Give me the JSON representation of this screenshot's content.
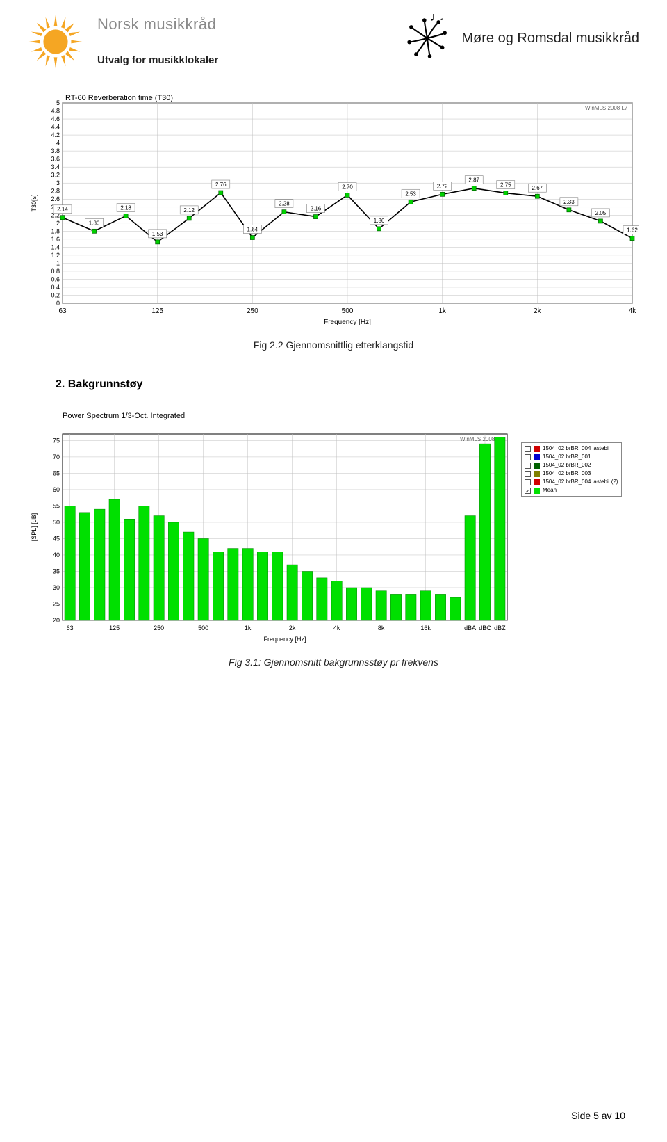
{
  "header": {
    "org_main": "Norsk musikkråd",
    "org_sub": "Utvalg for musikklokaler",
    "org_right": "Møre og Romsdal musikkråd"
  },
  "chart1": {
    "type": "line",
    "title": "RT-60 Reverberation time (T30)",
    "watermark": "WinMLS 2008 L7",
    "ylabel": "T30[s]",
    "ylim": [
      0,
      5
    ],
    "ytick_step": 0.2,
    "xlabel": "Frequency [Hz]",
    "x_tick_labels": [
      "63",
      "125",
      "250",
      "500",
      "1k",
      "2k",
      "4k"
    ],
    "x_positions": [
      0,
      3,
      6,
      9,
      12,
      15,
      18
    ],
    "n_points": 19,
    "values": [
      2.14,
      1.8,
      2.18,
      1.53,
      2.12,
      2.76,
      1.64,
      2.28,
      2.16,
      2.7,
      1.86,
      2.53,
      2.72,
      2.87,
      2.75,
      2.67,
      2.33,
      2.05,
      1.62
    ],
    "line_color": "#000000",
    "marker_color": "#00d000",
    "label_box_border": "#808080",
    "label_box_fill": "#ffffff",
    "label_fontsize": 8,
    "grid_color": "#c0c0c0",
    "background_color": "#ffffff",
    "caption": "Fig 2.2 Gjennomsnittlig etterklangstid"
  },
  "section2_heading": "2. Bakgrunnstøy",
  "chart2": {
    "type": "bar",
    "title": "Power Spectrum 1/3-Oct. Integrated",
    "watermark": "WinMLS 2008 L7",
    "ylabel": "[SPL] [dB]",
    "ylim": [
      20,
      77
    ],
    "yticks": [
      20,
      25,
      30,
      35,
      40,
      45,
      50,
      55,
      60,
      65,
      70,
      75
    ],
    "xlabel": "Frequency [Hz]",
    "x_tick_labels": [
      "63",
      "125",
      "250",
      "500",
      "1k",
      "2k",
      "4k",
      "8k",
      "16k",
      "dBA",
      "dBC",
      "dBZ"
    ],
    "x_tick_positions": [
      0,
      3,
      6,
      9,
      12,
      15,
      18,
      21,
      24,
      27,
      28,
      29
    ],
    "n_bars": 30,
    "values": [
      55,
      53,
      54,
      57,
      51,
      55,
      52,
      50,
      47,
      45,
      41,
      42,
      42,
      41,
      41,
      37,
      35,
      33,
      32,
      30,
      30,
      29,
      28,
      28,
      29,
      28,
      27,
      52,
      74,
      76
    ],
    "bar_color": "#00e000",
    "bar_width": 0.72,
    "grid_color": "#c0c0c0",
    "background_color": "#ffffff",
    "legend": [
      {
        "color": "#d00000",
        "checked": false,
        "label": "1504_02 brBR_004 lastebil"
      },
      {
        "color": "#0000d0",
        "checked": false,
        "label": "1504_02 brBR_001"
      },
      {
        "color": "#006000",
        "checked": false,
        "label": "1504_02 brBR_002"
      },
      {
        "color": "#808000",
        "checked": false,
        "label": "1504_02 brBR_003"
      },
      {
        "color": "#d00000",
        "checked": false,
        "label": "1504_02 brBR_004 lastebil (2)"
      },
      {
        "color": "#00e000",
        "checked": true,
        "label": "Mean"
      }
    ],
    "caption": "Fig 3.1: Gjennomsnitt bakgrunnsstøy pr frekvens"
  },
  "footer": "Side 5 av 10"
}
